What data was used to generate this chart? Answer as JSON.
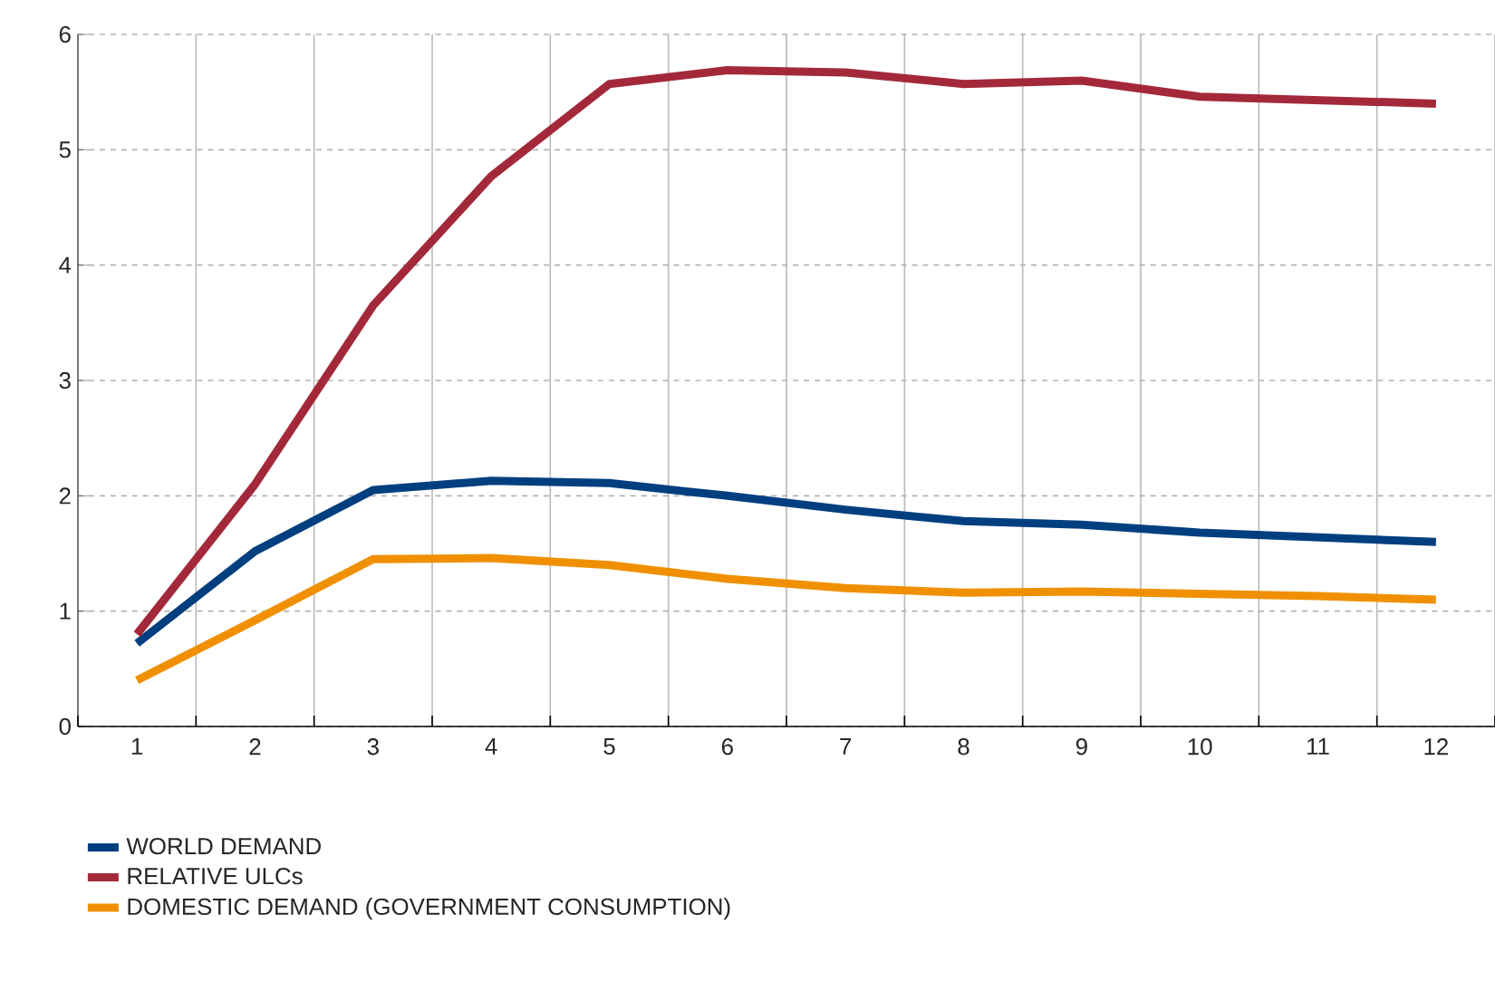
{
  "chart_data": {
    "type": "line",
    "categories": [
      "1",
      "2",
      "3",
      "4",
      "5",
      "6",
      "7",
      "8",
      "9",
      "10",
      "11",
      "12"
    ],
    "series": [
      {
        "name": "WORLD DEMAND",
        "color": "#003f7f",
        "values": [
          0.72,
          1.52,
          2.05,
          2.13,
          2.11,
          2.0,
          1.88,
          1.78,
          1.75,
          1.68,
          1.64,
          1.6
        ]
      },
      {
        "name": "RELATIVE ULCs",
        "color": "#a3293a",
        "values": [
          0.8,
          2.1,
          3.65,
          4.77,
          5.57,
          5.69,
          5.67,
          5.57,
          5.6,
          5.46,
          5.43,
          5.4
        ]
      },
      {
        "name": "DOMESTIC DEMAND (GOVERNMENT CONSUMPTION)",
        "color": "#f09000",
        "values": [
          0.4,
          0.92,
          1.45,
          1.46,
          1.4,
          1.28,
          1.2,
          1.16,
          1.17,
          1.15,
          1.13,
          1.1
        ]
      }
    ],
    "ylim": [
      0,
      6
    ],
    "yticks": [
      0,
      1,
      2,
      3,
      4,
      5,
      6
    ],
    "grid": true,
    "legend": "bottom",
    "marker": "none",
    "line_style": "solid"
  }
}
